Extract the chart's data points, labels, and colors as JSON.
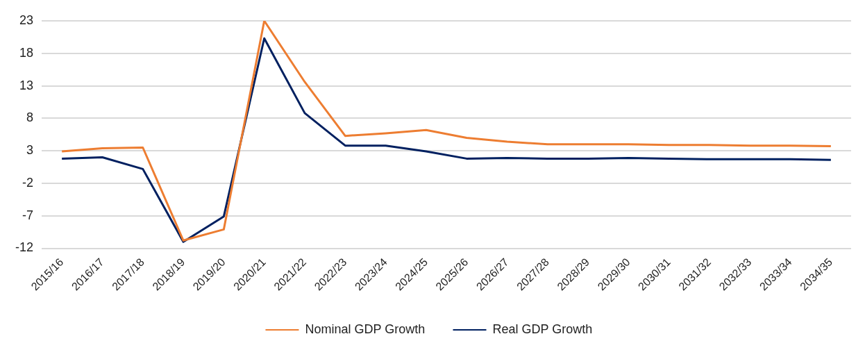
{
  "chart_data": {
    "type": "line",
    "categories": [
      "2015/16",
      "2016/17",
      "2017/18",
      "2018/19",
      "2019/20",
      "2020/21",
      "2021/22",
      "2022/23",
      "2023/24",
      "2024/25",
      "2025/26",
      "2026/27",
      "2027/28",
      "2028/29",
      "2029/30",
      "2030/31",
      "2031/32",
      "2032/33",
      "2033/34",
      "2034/35"
    ],
    "series": [
      {
        "name": "Nominal GDP Growth",
        "color": "#ed7d31",
        "values": [
          2.9,
          3.4,
          3.5,
          -10.8,
          -9.1,
          23,
          13.6,
          5.3,
          5.7,
          6.2,
          5.0,
          4.4,
          4.0,
          4.0,
          4.0,
          3.9,
          3.9,
          3.8,
          3.8,
          3.7
        ]
      },
      {
        "name": "Real GDP Growth",
        "color": "#002060",
        "values": [
          1.8,
          2.0,
          0.2,
          -11,
          -7.1,
          20.3,
          8.8,
          3.8,
          3.8,
          2.9,
          1.8,
          1.9,
          1.8,
          1.8,
          1.9,
          1.8,
          1.7,
          1.7,
          1.7,
          1.6
        ]
      }
    ],
    "ylim": [
      -12,
      23
    ],
    "yticks": [
      -12,
      -7,
      -2,
      3,
      8,
      13,
      18,
      23
    ],
    "grid": "y",
    "legend": "bottom",
    "marker": "none",
    "line_style": "solid"
  }
}
